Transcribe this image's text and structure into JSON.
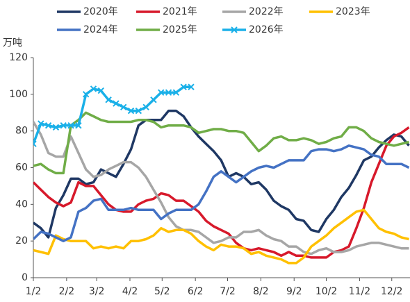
{
  "chart_data": {
    "type": "line",
    "y_label": "万吨",
    "x": [
      2,
      9,
      16,
      23,
      30,
      37,
      44,
      51,
      58,
      65,
      72,
      79,
      86,
      93,
      100,
      107,
      114,
      121,
      128,
      135,
      142,
      149,
      156,
      163,
      170,
      177,
      184,
      191,
      198,
      205,
      212,
      219,
      226,
      233,
      240,
      247,
      254,
      261,
      268,
      275,
      282,
      289,
      296,
      303,
      310,
      317,
      324,
      331,
      338,
      345,
      352
    ],
    "xlim": [
      2,
      353
    ],
    "xticks": [
      {
        "value": 2,
        "label": "1/2"
      },
      {
        "value": 33,
        "label": "2/2"
      },
      {
        "value": 61,
        "label": "3/2"
      },
      {
        "value": 92,
        "label": "4/2"
      },
      {
        "value": 122,
        "label": "5/2"
      },
      {
        "value": 153,
        "label": "6/2"
      },
      {
        "value": 183,
        "label": "7/2"
      },
      {
        "value": 214,
        "label": "8/2"
      },
      {
        "value": 245,
        "label": "9/2"
      },
      {
        "value": 275,
        "label": "10/2"
      },
      {
        "value": 306,
        "label": "11/2"
      },
      {
        "value": 336,
        "label": "12/2"
      }
    ],
    "ylim": [
      0,
      120
    ],
    "yticks": [
      0,
      20,
      40,
      60,
      80,
      100,
      120
    ],
    "grid": false,
    "legend": "top",
    "series": [
      {
        "name": "2020年",
        "color": "#1f3864",
        "values": [
          30,
          27,
          22,
          38,
          45,
          54,
          54,
          51,
          52,
          59,
          57,
          55,
          62,
          70,
          83,
          86,
          86,
          86,
          91,
          91,
          88,
          82,
          77,
          73,
          69,
          64,
          55,
          57,
          55,
          51,
          52,
          48,
          42,
          39,
          37,
          32,
          31,
          26,
          25,
          32,
          37,
          44,
          49,
          56,
          64,
          66,
          71,
          75,
          78,
          77,
          72
        ]
      },
      {
        "name": "2021年",
        "color": "#d7192b",
        "values": [
          52,
          48,
          44,
          41,
          39,
          41,
          52,
          50,
          50,
          45,
          40,
          37,
          36,
          36,
          40,
          42,
          43,
          46,
          45,
          42,
          42,
          39,
          36,
          31,
          28,
          26,
          24,
          19,
          16,
          15,
          16,
          15,
          14,
          12,
          14,
          12,
          12,
          11,
          11,
          11,
          14,
          15,
          17,
          27,
          38,
          52,
          62,
          72,
          77,
          79,
          82
        ]
      },
      {
        "name": "2022年",
        "color": "#a6a6a6",
        "values": [
          85,
          78,
          68,
          66,
          66,
          77,
          68,
          59,
          55,
          56,
          59,
          61,
          63,
          63,
          60,
          55,
          48,
          41,
          33,
          28,
          26,
          26,
          25,
          22,
          19,
          20,
          22,
          22,
          25,
          25,
          26,
          23,
          21,
          20,
          17,
          17,
          14,
          13,
          15,
          16,
          14,
          14,
          15,
          17,
          18,
          19,
          19,
          18,
          17,
          16,
          16
        ]
      },
      {
        "name": "2023年",
        "color": "#ffc000",
        "values": [
          15,
          14,
          13,
          23,
          21,
          20,
          20,
          20,
          16,
          17,
          16,
          17,
          16,
          20,
          20,
          21,
          23,
          27,
          25,
          26,
          26,
          24,
          20,
          17,
          15,
          18,
          17,
          17,
          16,
          13,
          14,
          12,
          11,
          10,
          8,
          8,
          11,
          17,
          20,
          23,
          27,
          30,
          33,
          36,
          37,
          32,
          27,
          25,
          24,
          22,
          21
        ]
      },
      {
        "name": "2024年",
        "color": "#4472c4",
        "values": [
          21,
          25,
          24,
          22,
          20,
          22,
          36,
          38,
          42,
          43,
          37,
          37,
          37,
          38,
          37,
          37,
          37,
          32,
          35,
          37,
          37,
          37,
          40,
          47,
          55,
          58,
          55,
          52,
          55,
          58,
          60,
          61,
          60,
          62,
          64,
          64,
          64,
          69,
          70,
          70,
          69,
          70,
          72,
          71,
          70,
          67,
          66,
          62,
          62,
          62,
          60
        ]
      },
      {
        "name": "2025年",
        "color": "#70ad47",
        "values": [
          61,
          62,
          59,
          57,
          57,
          83,
          86,
          90,
          88,
          86,
          85,
          85,
          85,
          85,
          86,
          86,
          85,
          82,
          83,
          83,
          83,
          82,
          79,
          80,
          81,
          81,
          80,
          80,
          79,
          74,
          69,
          72,
          76,
          77,
          75,
          75,
          76,
          75,
          73,
          74,
          76,
          77,
          82,
          82,
          80,
          76,
          74,
          73,
          72,
          73,
          74
        ]
      },
      {
        "name": "2026年",
        "color": "#1ab0e8",
        "marker": "x",
        "values": [
          73,
          84,
          83,
          82,
          83,
          83,
          83,
          100,
          103,
          102,
          97,
          95,
          93,
          91,
          91,
          93,
          97,
          101,
          101,
          101,
          104,
          104,
          null,
          null,
          null,
          null,
          null,
          null,
          null,
          null,
          null,
          null,
          null,
          null,
          null,
          null,
          null,
          null,
          null,
          null,
          null,
          null,
          null,
          null,
          null,
          null,
          null,
          null,
          null,
          null,
          null
        ]
      }
    ]
  }
}
